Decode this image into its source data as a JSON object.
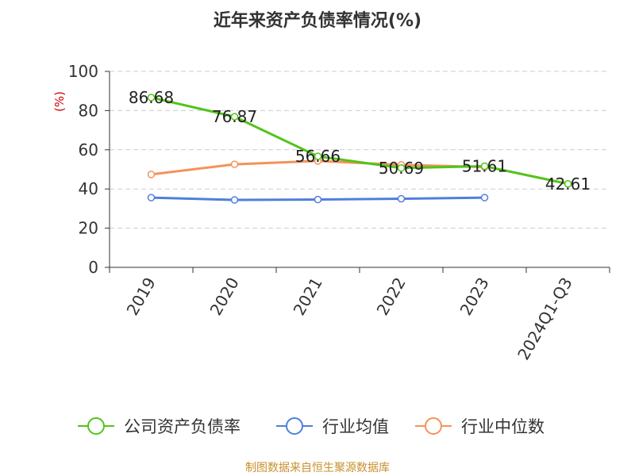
{
  "chart_data": {
    "type": "line",
    "title": "近年来资产负债率情况(%)",
    "ylabel": "(%)",
    "xlabel": "",
    "ylim": [
      0,
      100
    ],
    "yticks": [
      0,
      20,
      40,
      60,
      80,
      100
    ],
    "grid": true,
    "legend_position": "bottom",
    "categories": [
      "2019",
      "2020",
      "2021",
      "2022",
      "2023",
      "2024Q1-Q3"
    ],
    "series": [
      {
        "name": "公司资产负债率",
        "color": "#52c41a",
        "values": [
          86.68,
          76.87,
          56.66,
          50.69,
          51.61,
          42.61
        ],
        "data_labels": [
          "86.68",
          "76.87",
          "56.66",
          "50.69",
          "51.61",
          "42.61"
        ]
      },
      {
        "name": "行业均值",
        "color": "#4f7fdc",
        "values": [
          35.6,
          34.4,
          34.6,
          35.0,
          35.6,
          null
        ]
      },
      {
        "name": "行业中位数",
        "color": "#f4925a",
        "values": [
          47.4,
          52.6,
          54.3,
          52.3,
          51.2,
          null
        ]
      }
    ]
  },
  "source": "制图数据来自恒生聚源数据库"
}
